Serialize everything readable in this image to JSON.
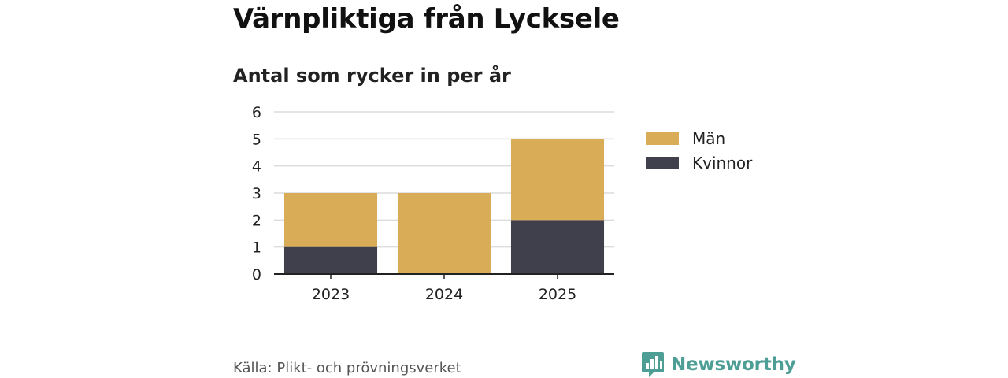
{
  "header": {
    "title": "Värnpliktiga från Lycksele",
    "subtitle": "Antal som rycker in per år"
  },
  "chart_data": {
    "type": "bar",
    "stacked": true,
    "categories": [
      "2023",
      "2024",
      "2025"
    ],
    "series": [
      {
        "name": "Kvinnor",
        "values": [
          1,
          0,
          2
        ],
        "color": "#403f4c"
      },
      {
        "name": "Män",
        "values": [
          2,
          3,
          3
        ],
        "color": "#d9ac57"
      }
    ],
    "ylim": [
      0,
      6
    ],
    "yticks": [
      0,
      1,
      2,
      3,
      4,
      5,
      6
    ],
    "grid": true,
    "legend_position": "right"
  },
  "legend": {
    "items": [
      {
        "label": "Män",
        "color": "#d9ac57"
      },
      {
        "label": "Kvinnor",
        "color": "#403f4c"
      }
    ]
  },
  "footer": {
    "source": "Källa: Plikt- och prövningsverket",
    "brand": "Newsworthy",
    "brand_icon": "bar-chart-speech-bubble-icon",
    "brand_color": "#4d9e95"
  }
}
